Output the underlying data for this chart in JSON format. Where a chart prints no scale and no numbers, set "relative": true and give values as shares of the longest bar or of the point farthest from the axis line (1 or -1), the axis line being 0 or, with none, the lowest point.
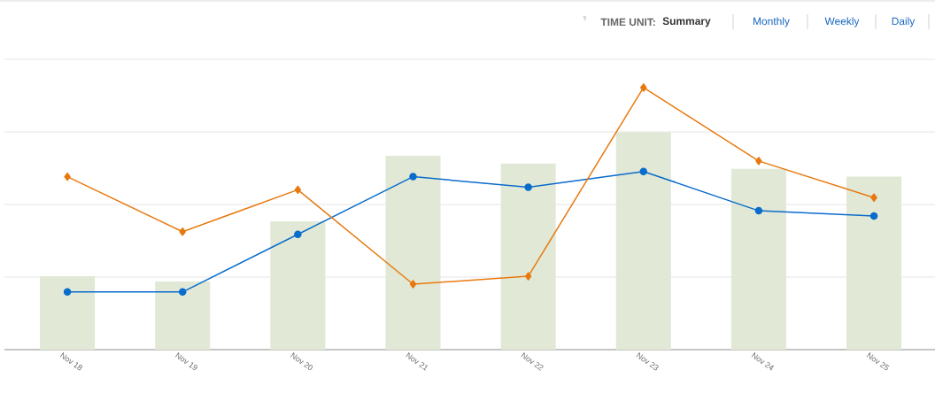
{
  "chart_data": {
    "type": "bar",
    "relative": true,
    "grid": "y",
    "categories": [
      "Nov 18",
      "Nov 19",
      "Nov 20",
      "Nov 21",
      "Nov 22",
      "Nov 23",
      "Nov 24",
      "Nov 25"
    ],
    "series": [
      {
        "color": "#e1e9d6",
        "values": [
          0.28,
          0.26,
          0.49,
          0.74,
          0.71,
          0.83,
          0.69,
          0.66
        ]
      },
      {
        "type": "line",
        "color": "#0a6ccc",
        "marker": "circle",
        "values": [
          0.22,
          0.22,
          0.44,
          0.66,
          0.62,
          0.68,
          0.53,
          0.51
        ]
      },
      {
        "type": "line",
        "color": "#e8790f",
        "marker": "diamond",
        "values": [
          0.66,
          0.45,
          0.61,
          0.25,
          0.28,
          1.0,
          0.72,
          0.58
        ]
      }
    ],
    "annotations": [
      "?",
      "TIME UNIT:",
      "Summary",
      "Monthly",
      "Weekly",
      "Daily"
    ]
  }
}
